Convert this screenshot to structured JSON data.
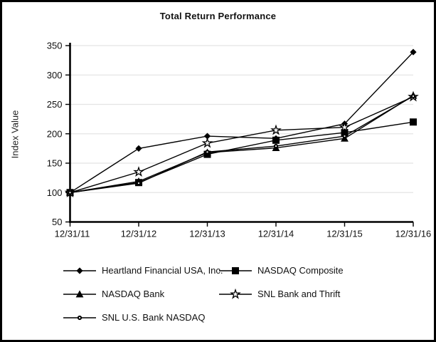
{
  "frame": {
    "background": "#ffffff",
    "border_color": "#000000"
  },
  "colors": {
    "series_line": "#000000",
    "gridline": "#e4e4e4",
    "axis": "#000000",
    "text": "#111111"
  },
  "chart_data": {
    "type": "line",
    "title": "Total Return Performance",
    "xlabel": "",
    "ylabel": "Index Value",
    "categories": [
      "12/31/11",
      "12/31/12",
      "12/31/13",
      "12/31/14",
      "12/31/15",
      "12/31/16"
    ],
    "ylim": [
      50,
      350
    ],
    "y_ticks": [
      50,
      100,
      150,
      200,
      250,
      300,
      350
    ],
    "grid": "horizontal gridlines only",
    "legend_position": "bottom-left, 2 columns",
    "series": [
      {
        "name": "Heartland Financial USA, Inc.",
        "marker": "diamond",
        "values": [
          100,
          175,
          196,
          192,
          217,
          339
        ]
      },
      {
        "name": "NASDAQ Composite",
        "marker": "square",
        "values": [
          100,
          117,
          165,
          189,
          202,
          220
        ]
      },
      {
        "name": "NASDAQ Bank",
        "marker": "triangle",
        "values": [
          100,
          119,
          168,
          176,
          192,
          265
        ]
      },
      {
        "name": "SNL Bank and Thrift",
        "marker": "star",
        "values": [
          100,
          135,
          184,
          206,
          211,
          263
        ]
      },
      {
        "name": "SNL U.S. Bank NASDAQ",
        "marker": "circle",
        "values": [
          100,
          116,
          169,
          179,
          196,
          264
        ]
      }
    ]
  }
}
